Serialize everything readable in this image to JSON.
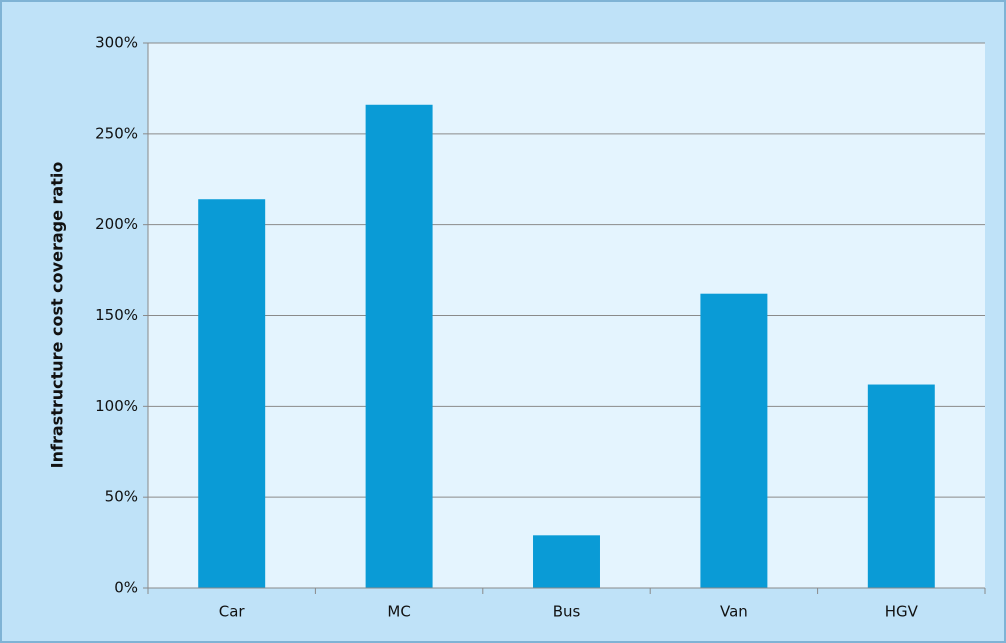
{
  "chart_data": {
    "type": "bar",
    "y_label": "Infrastructure cost coverage ratio",
    "categories": [
      "Car",
      "MC",
      "Bus",
      "Van",
      "HGV"
    ],
    "values": [
      214,
      266,
      29,
      162,
      112
    ],
    "color": "#0a9bd6",
    "ylim": [
      0,
      300
    ],
    "yticks": [
      {
        "value": 0,
        "label": "0%"
      },
      {
        "value": 50,
        "label": "50%"
      },
      {
        "value": 100,
        "label": "100%"
      },
      {
        "value": 150,
        "label": "150%"
      },
      {
        "value": 200,
        "label": "200%"
      },
      {
        "value": 250,
        "label": "250%"
      },
      {
        "value": 300,
        "label": "300%"
      }
    ],
    "grid": true
  }
}
